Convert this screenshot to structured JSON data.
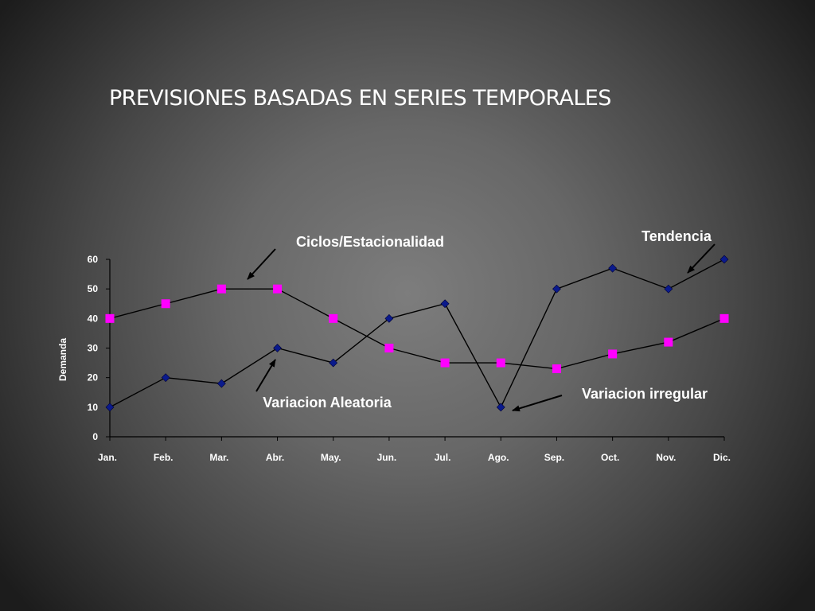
{
  "slide": {
    "title": "PREVISIONES BASADAS EN SERIES TEMPORALES"
  },
  "chart_data": {
    "type": "line",
    "title": "",
    "xlabel": "",
    "ylabel": "Demanda",
    "categories": [
      "Jan.",
      "Feb.",
      "Mar.",
      "Abr.",
      "May.",
      "Jun.",
      "Jul.",
      "Ago.",
      "Sep.",
      "Oct.",
      "Nov.",
      "Dic."
    ],
    "ylim": [
      0,
      60
    ],
    "yticks": [
      0,
      10,
      20,
      30,
      40,
      50,
      60
    ],
    "grid": false,
    "legend": "none",
    "series": [
      {
        "values": [
          10,
          20,
          18,
          30,
          25,
          40,
          45,
          10,
          50,
          57,
          50,
          60
        ],
        "marker": "diamond",
        "marker_color": "#0a1a8c",
        "line_color": "#000000"
      },
      {
        "values": [
          40,
          45,
          50,
          50,
          40,
          30,
          25,
          25,
          23,
          28,
          32,
          40
        ],
        "marker": "square",
        "marker_color": "#ff00ff",
        "line_color": "#000000"
      }
    ],
    "annotations": [
      {
        "text": "Ciclos/Estacionalidad"
      },
      {
        "text": "Tendencia"
      },
      {
        "text": "Variacion Aleatoria"
      },
      {
        "text": "Variacion irregular"
      }
    ]
  }
}
